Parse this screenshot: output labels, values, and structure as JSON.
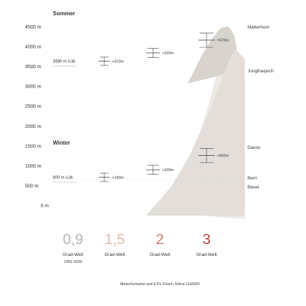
{
  "chart_data": {
    "type": "line",
    "title": "",
    "ylabel": "",
    "ylim": [
      0,
      4500
    ],
    "y_ticks": [
      {
        "value": 4500,
        "label": "4500 m"
      },
      {
        "value": 4000,
        "label": "4000 m"
      },
      {
        "value": 3500,
        "label": "3500 m"
      },
      {
        "value": 3000,
        "label": "3000 m"
      },
      {
        "value": 2500,
        "label": "2500 m"
      },
      {
        "value": 2000,
        "label": "2000 m"
      },
      {
        "value": 1500,
        "label": "1500 m"
      },
      {
        "value": 1000,
        "label": "1000 m"
      },
      {
        "value": 500,
        "label": "500 m"
      },
      {
        "value": 0,
        "label": "0 m"
      }
    ],
    "scenarios": [
      {
        "value": "0,9",
        "label": "Grad-Welt",
        "sublabel": "1991-2020",
        "color": "#b3b3b3"
      },
      {
        "value": "1,5",
        "label": "Grad-Welt",
        "sublabel": "",
        "color": "#e8b7a8"
      },
      {
        "value": "2",
        "label": "Grad-Welt",
        "sublabel": "",
        "color": "#cf7e6b"
      },
      {
        "value": "3",
        "label": "Grad-Welt",
        "sublabel": "",
        "color": "#a8453a"
      }
    ],
    "series": [
      {
        "name": "Sommer",
        "baseline_label": "3590 m ü.M.",
        "baseline": 3590,
        "points": [
          {
            "level": 3590,
            "low": 3520,
            "high": 3660,
            "change": "+210m"
          },
          {
            "level": 3800,
            "low": 3720,
            "high": 3880,
            "change": "+320m"
          },
          {
            "level": 4120,
            "low": 3980,
            "high": 4270,
            "change": "+570m"
          }
        ]
      },
      {
        "name": "Winter",
        "baseline_label": "900 m ü.M.",
        "baseline": 900,
        "points": [
          {
            "level": 900,
            "low": 830,
            "high": 970,
            "change": "+190m"
          },
          {
            "level": 1090,
            "low": 1010,
            "high": 1170,
            "change": "+320m"
          },
          {
            "level": 1450,
            "low": 1310,
            "high": 1600,
            "change": "+550m"
          }
        ]
      }
    ],
    "reference_places": [
      {
        "name": "Matterhorn",
        "elevation": 4478
      },
      {
        "name": "Jungfraujoch",
        "elevation": 3454
      },
      {
        "name": "Davos",
        "elevation": 1560
      },
      {
        "name": "Bern",
        "elevation": 540
      },
      {
        "name": "Basel",
        "elevation": 260
      }
    ],
    "source_prefix": "MeteoSchweiz und ETH Zürich, ",
    "source_italic": "Klima",
    "source_suffix": " CH2025"
  },
  "colors": {
    "mountain_dark": "#d9d3cd",
    "mountain_light": "#ece9e5",
    "axis_text": "#333333",
    "marker": "#333333"
  }
}
